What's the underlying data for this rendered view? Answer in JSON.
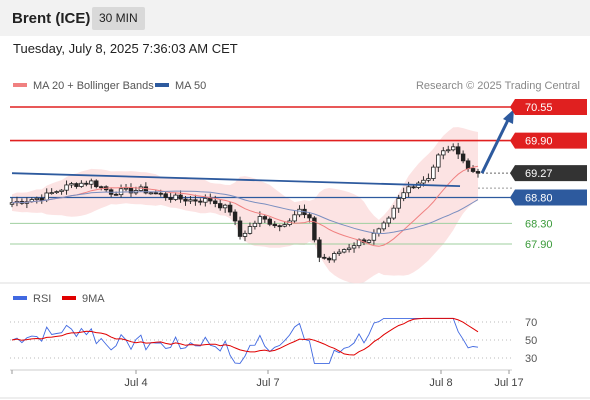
{
  "header": {
    "title": "Brent (ICE)",
    "timeframe": "30 MIN",
    "datetime": "Tuesday, July 8, 2025 7:36:03 AM CET"
  },
  "legend": {
    "ma20": "MA 20 + Bollinger Bands",
    "ma50": "MA 50",
    "ma20_color": "#f08080",
    "ma50_color": "#2d5a9e",
    "copyright": "Research © 2025 Trading Central"
  },
  "rsi_legend": {
    "rsi": "RSI",
    "ma9": "9MA",
    "rsi_color": "#4169e1",
    "ma9_color": "#e00000"
  },
  "chart_data": {
    "type": "candlestick",
    "price_axis_range": [
      67.4,
      70.75
    ],
    "price_levels": [
      {
        "label": "70.55",
        "value": 70.55,
        "role": "resistance",
        "color": "#e02020"
      },
      {
        "label": "69.90",
        "value": 69.9,
        "role": "resistance",
        "color": "#e02020"
      },
      {
        "label": "69.27",
        "value": 69.27,
        "role": "last",
        "color": "#333333"
      },
      {
        "label": "68.80",
        "value": 68.8,
        "role": "pivot",
        "color": "#2d5a9e"
      },
      {
        "label": "68.30",
        "value": 68.3,
        "role": "support",
        "color": "#3a9a3a"
      },
      {
        "label": "67.90",
        "value": 67.9,
        "role": "support",
        "color": "#3a9a3a"
      }
    ],
    "x_labels": [
      "Jul 4",
      "Jul 7",
      "Jul 8",
      "Jul 17"
    ],
    "rsi_levels": [
      "70",
      "50",
      "30"
    ],
    "rsi_range": [
      20,
      80
    ],
    "forecast_arrow": {
      "direction": "up",
      "target": 70.55,
      "color": "#2d5a9e"
    },
    "trendline": {
      "from": 69.27,
      "to": 69.02,
      "color": "#2d5a9e"
    }
  }
}
